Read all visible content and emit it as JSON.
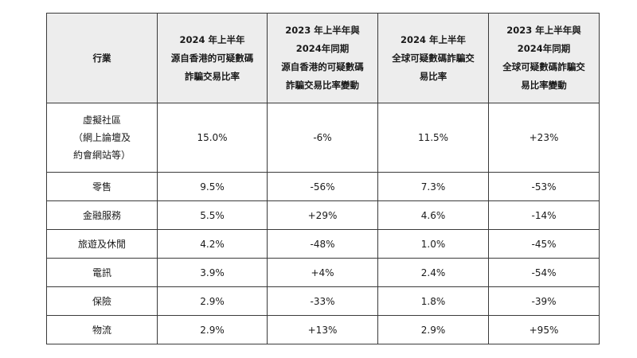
{
  "table": {
    "headers": [
      [
        "行業"
      ],
      [
        "2024 年上半年",
        "源自香港的可疑數碼",
        "詐騙交易比率"
      ],
      [
        "2023 年上半年與",
        "2024年同期",
        "源自香港的可疑數碼",
        "詐騙交易比率變動"
      ],
      [
        "2024 年上半年",
        "全球可疑數碼詐騙交",
        "易比率"
      ],
      [
        "2023 年上半年與",
        "2024年同期",
        "全球可疑數碼詐騙交",
        "易比率變動"
      ]
    ],
    "rows": [
      {
        "industry": [
          "虛擬社區",
          "（網上論壇及",
          "約會網站等）"
        ],
        "hk_rate": "15.0%",
        "hk_change": "-6%",
        "global_rate": "11.5%",
        "global_change": "+23%"
      },
      {
        "industry": [
          "零售"
        ],
        "hk_rate": "9.5%",
        "hk_change": "-56%",
        "global_rate": "7.3%",
        "global_change": "-53%"
      },
      {
        "industry": [
          "金融服務"
        ],
        "hk_rate": "5.5%",
        "hk_change": "+29%",
        "global_rate": "4.6%",
        "global_change": "-14%"
      },
      {
        "industry": [
          "旅遊及休閒"
        ],
        "hk_rate": "4.2%",
        "hk_change": "-48%",
        "global_rate": "1.0%",
        "global_change": "-45%"
      },
      {
        "industry": [
          "電訊"
        ],
        "hk_rate": "3.9%",
        "hk_change": "+4%",
        "global_rate": "2.4%",
        "global_change": "-54%"
      },
      {
        "industry": [
          "保險"
        ],
        "hk_rate": "2.9%",
        "hk_change": "-33%",
        "global_rate": "1.8%",
        "global_change": "-39%"
      },
      {
        "industry": [
          "物流"
        ],
        "hk_rate": "2.9%",
        "hk_change": "+13%",
        "global_rate": "2.9%",
        "global_change": "+95%"
      }
    ]
  }
}
